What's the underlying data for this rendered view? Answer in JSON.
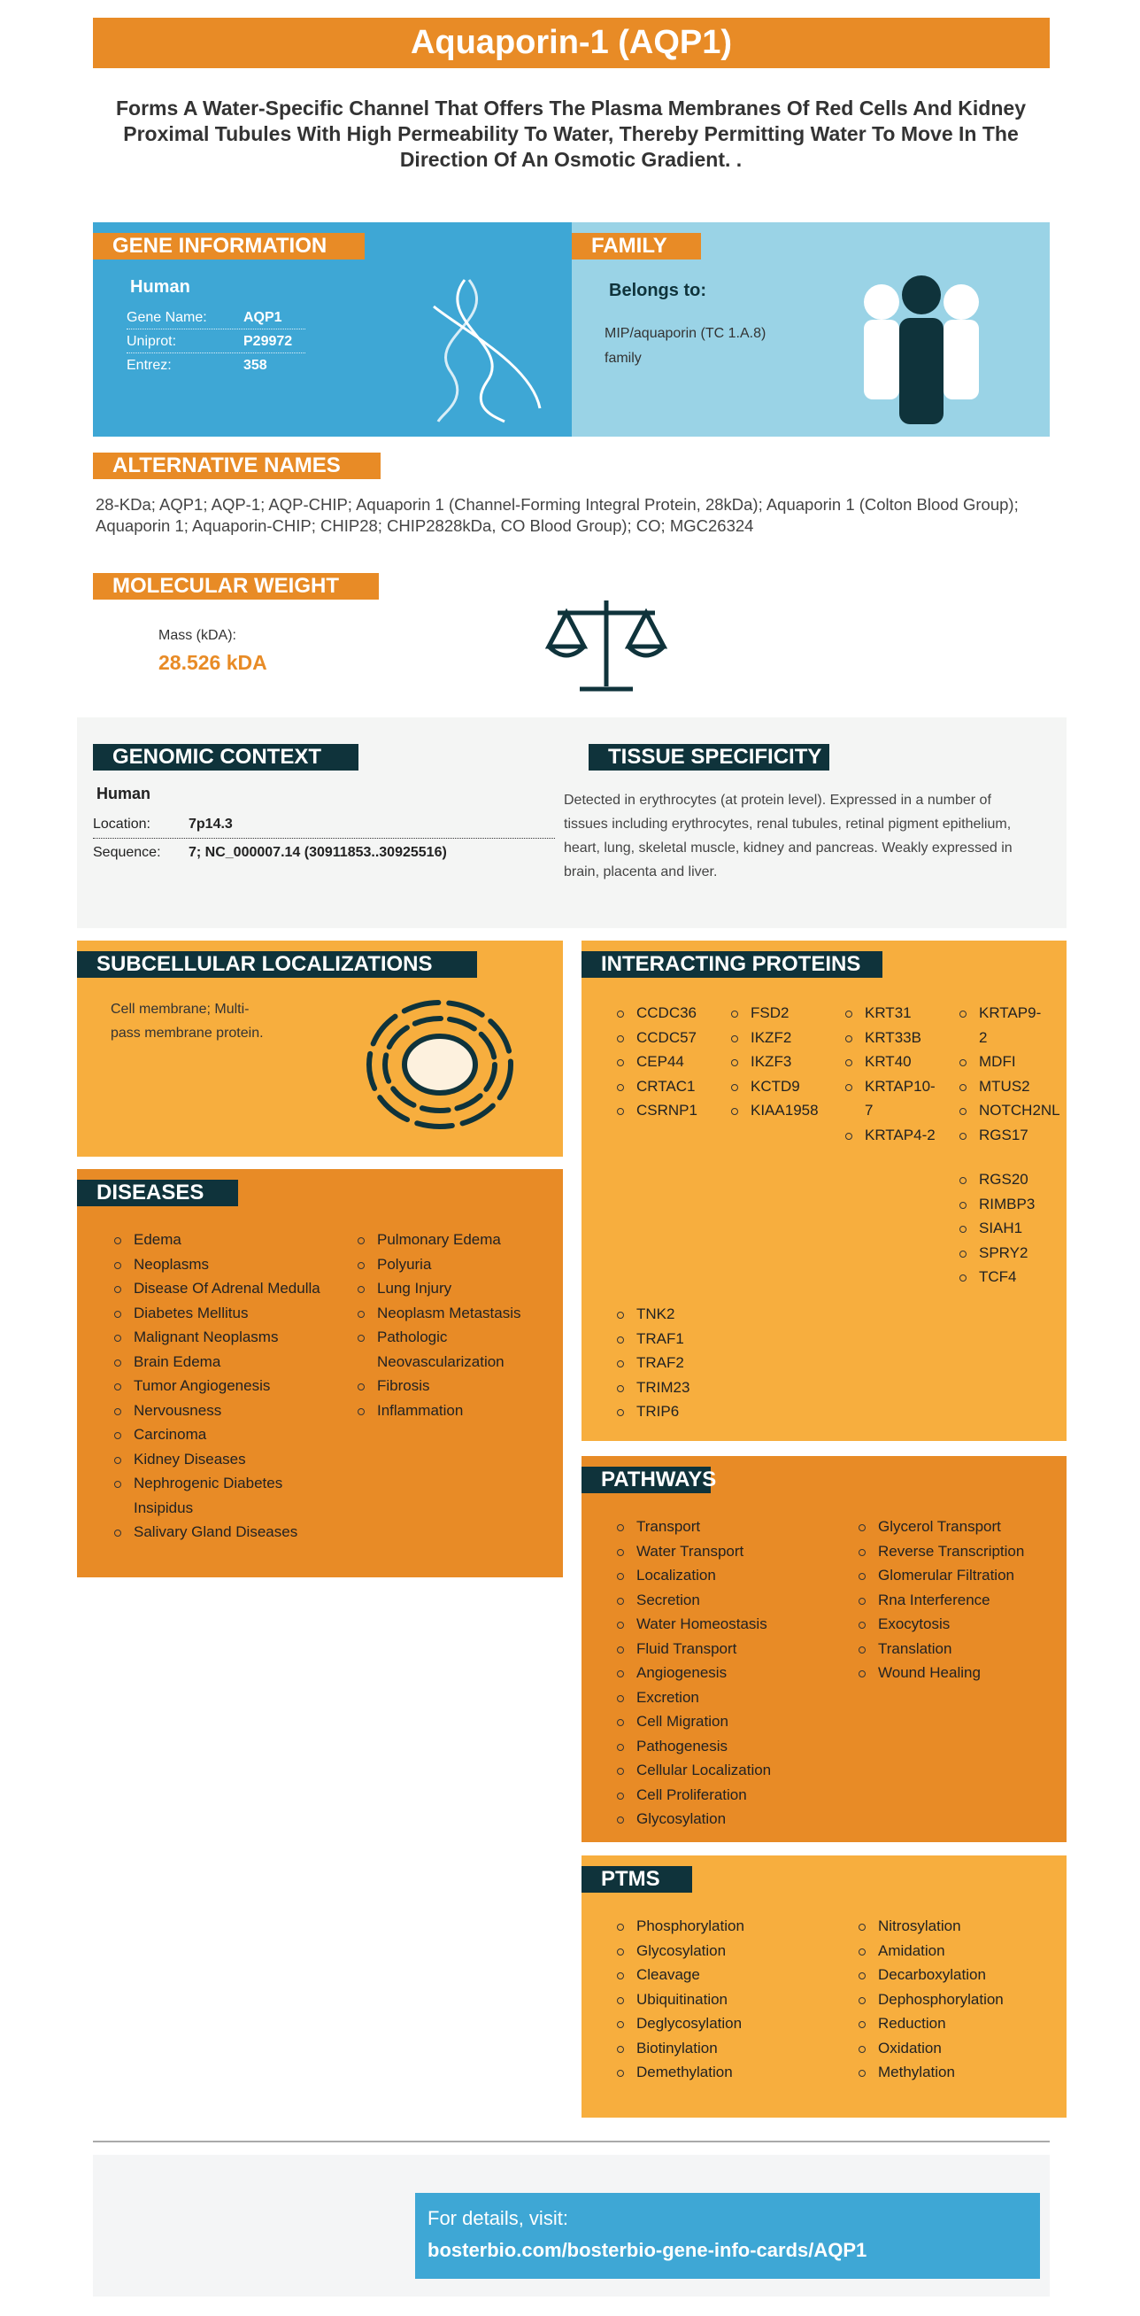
{
  "title": "Aquaporin-1 (AQP1)",
  "subtitle": "Forms A Water-Specific Channel That Offers The Plasma Membranes Of Red Cells And Kidney Proximal Tubules With High Permeability To Water, Thereby Permitting Water To Move In The Direction Of An Osmotic Gradient. .",
  "gene_info": {
    "header": "GENE INFORMATION",
    "species": "Human",
    "rows": [
      {
        "label": "Gene Name:",
        "value": "AQP1"
      },
      {
        "label": "Uniprot:",
        "value": "P29972"
      },
      {
        "label": "Entrez:",
        "value": "358"
      }
    ]
  },
  "family": {
    "header": "FAMILY",
    "belongs": "Belongs to:",
    "text": "MIP/aquaporin (TC 1.A.8) family"
  },
  "alt_names": {
    "header": "ALTERNATIVE NAMES",
    "text": "28-KDa; AQP1; AQP-1; AQP-CHIP; Aquaporin 1 (Channel-Forming Integral Protein, 28kDa); Aquaporin 1 (Colton Blood Group); Aquaporin 1; Aquaporin-CHIP; CHIP28; CHIP2828kDa, CO Blood Group); CO; MGC26324"
  },
  "mol_weight": {
    "header": "MOLECULAR WEIGHT",
    "label": "Mass (kDA):",
    "value": "28.526 kDA"
  },
  "genomic": {
    "header": "GENOMIC CONTEXT",
    "species": "Human",
    "rows": [
      {
        "label": "Location:",
        "value": "7p14.3"
      },
      {
        "label": "Sequence:",
        "value": "7; NC_000007.14 (30911853..30925516)"
      }
    ]
  },
  "tissue": {
    "header": "TISSUE SPECIFICITY",
    "text": "Detected in erythrocytes (at protein level). Expressed in a number of tissues including erythrocytes, renal tubules, retinal pigment epithelium, heart, lung, skeletal muscle, kidney and pancreas. Weakly expressed in brain, placenta and liver."
  },
  "subcellular": {
    "header": "SUBCELLULAR LOCALIZATIONS",
    "text": "Cell membrane; Multi-pass membrane protein."
  },
  "diseases": {
    "header": "DISEASES",
    "col1": [
      "Edema",
      "Neoplasms",
      "Disease Of Adrenal Medulla",
      "Diabetes Mellitus",
      "Malignant Neoplasms",
      "Brain Edema",
      "Tumor Angiogenesis",
      "Nervousness",
      "Carcinoma",
      "Kidney Diseases",
      "Nephrogenic Diabetes Insipidus",
      "Salivary Gland Diseases"
    ],
    "col2": [
      "Pulmonary Edema",
      "Polyuria",
      "Lung Injury",
      "Neoplasm Metastasis",
      "Pathologic Neovascularization",
      "Fibrosis",
      "Inflammation"
    ]
  },
  "interacting": {
    "header": "INTERACTING PROTEINS",
    "col1": [
      "CCDC36",
      "CCDC57",
      "CEP44",
      "CRTAC1",
      "CSRNP1"
    ],
    "col2": [
      "FSD2",
      "IKZF2",
      "IKZF3",
      "KCTD9",
      "KIAA1958"
    ],
    "col3": [
      "KRT31",
      "KRT33B",
      "KRT40",
      "KRTAP10-7",
      "KRTAP4-2"
    ],
    "col4a": [
      "KRTAP9-2",
      "MDFI",
      "MTUS2",
      "NOTCH2NL",
      "RGS17"
    ],
    "col4b": [
      "RGS20",
      "RIMBP3",
      "SIAH1",
      "SPRY2",
      "TCF4"
    ],
    "col1b": [
      "TNK2",
      "TRAF1",
      "TRAF2",
      "TRIM23",
      "TRIP6"
    ]
  },
  "pathways": {
    "header": "PATHWAYS",
    "col1": [
      "Transport",
      "Water Transport",
      "Localization",
      "Secretion",
      "Water Homeostasis",
      "Fluid Transport",
      "Angiogenesis",
      "Excretion",
      "Cell Migration",
      "Pathogenesis",
      "Cellular Localization",
      "Cell Proliferation",
      "Glycosylation"
    ],
    "col2": [
      "Glycerol Transport",
      "Reverse Transcription",
      "Glomerular Filtration",
      "Rna Interference",
      "Exocytosis",
      "Translation",
      "Wound Healing"
    ]
  },
  "ptms": {
    "header": "PTMS",
    "col1": [
      "Phosphorylation",
      "Glycosylation",
      "Cleavage",
      "Ubiquitination",
      "Deglycosylation",
      "Biotinylation",
      "Demethylation"
    ],
    "col2": [
      "Nitrosylation",
      "Amidation",
      "Decarboxylation",
      "Dephosphorylation",
      "Reduction",
      "Oxidation",
      "Methylation"
    ]
  },
  "footer": {
    "label": "For details, visit:",
    "link": "bosterbio.com/bosterbio-gene-info-cards/AQP1"
  },
  "colors": {
    "orange": "#e88b26",
    "light_orange": "#f7ae3e",
    "blue": "#3ea7d5",
    "light_blue": "#9ad3e6",
    "dark": "#0f333b"
  }
}
